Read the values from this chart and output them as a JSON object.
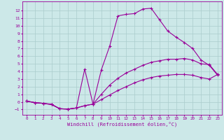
{
  "background_color": "#cce8e8",
  "line_color": "#990099",
  "grid_color": "#aacccc",
  "xlabel": "Windchill (Refroidissement éolien,°C)",
  "xlim": [
    -0.5,
    23.5
  ],
  "ylim": [
    -1.7,
    13.2
  ],
  "xticks": [
    0,
    1,
    2,
    3,
    4,
    5,
    6,
    7,
    8,
    9,
    10,
    11,
    12,
    13,
    14,
    15,
    16,
    17,
    18,
    19,
    20,
    21,
    22,
    23
  ],
  "yticks": [
    -1,
    0,
    1,
    2,
    3,
    4,
    5,
    6,
    7,
    8,
    9,
    10,
    11,
    12
  ],
  "curve1_x": [
    0,
    1,
    2,
    3,
    4,
    5,
    6,
    7,
    8,
    9,
    10,
    11,
    12,
    13,
    14,
    15,
    16,
    17,
    18,
    19,
    20,
    21,
    22,
    23
  ],
  "curve1_y": [
    0.1,
    -0.1,
    -0.2,
    -0.3,
    -0.9,
    -0.95,
    -0.8,
    4.3,
    -0.3,
    4.2,
    7.3,
    11.3,
    11.5,
    11.6,
    12.2,
    12.3,
    10.8,
    9.3,
    8.5,
    7.8,
    7.0,
    5.5,
    4.8,
    3.5
  ],
  "curve2_x": [
    0,
    1,
    2,
    3,
    4,
    5,
    6,
    7,
    8,
    9,
    10,
    11,
    12,
    13,
    14,
    15,
    16,
    17,
    18,
    19,
    20,
    21,
    22,
    23
  ],
  "curve2_y": [
    0.1,
    -0.1,
    -0.2,
    -0.35,
    -0.9,
    -0.95,
    -0.8,
    -0.5,
    -0.3,
    1.0,
    2.2,
    3.1,
    3.8,
    4.3,
    4.8,
    5.2,
    5.4,
    5.6,
    5.6,
    5.7,
    5.5,
    5.0,
    4.9,
    3.6
  ],
  "curve3_x": [
    0,
    1,
    2,
    3,
    4,
    5,
    6,
    7,
    8,
    9,
    10,
    11,
    12,
    13,
    14,
    15,
    16,
    17,
    18,
    19,
    20,
    21,
    22,
    23
  ],
  "curve3_y": [
    0.1,
    -0.1,
    -0.2,
    -0.35,
    -0.9,
    -0.95,
    -0.8,
    -0.5,
    -0.3,
    0.3,
    0.9,
    1.5,
    2.0,
    2.5,
    2.9,
    3.2,
    3.4,
    3.5,
    3.6,
    3.6,
    3.5,
    3.2,
    3.0,
    3.6
  ],
  "marker": "+",
  "markersize": 3,
  "linewidth": 0.8
}
